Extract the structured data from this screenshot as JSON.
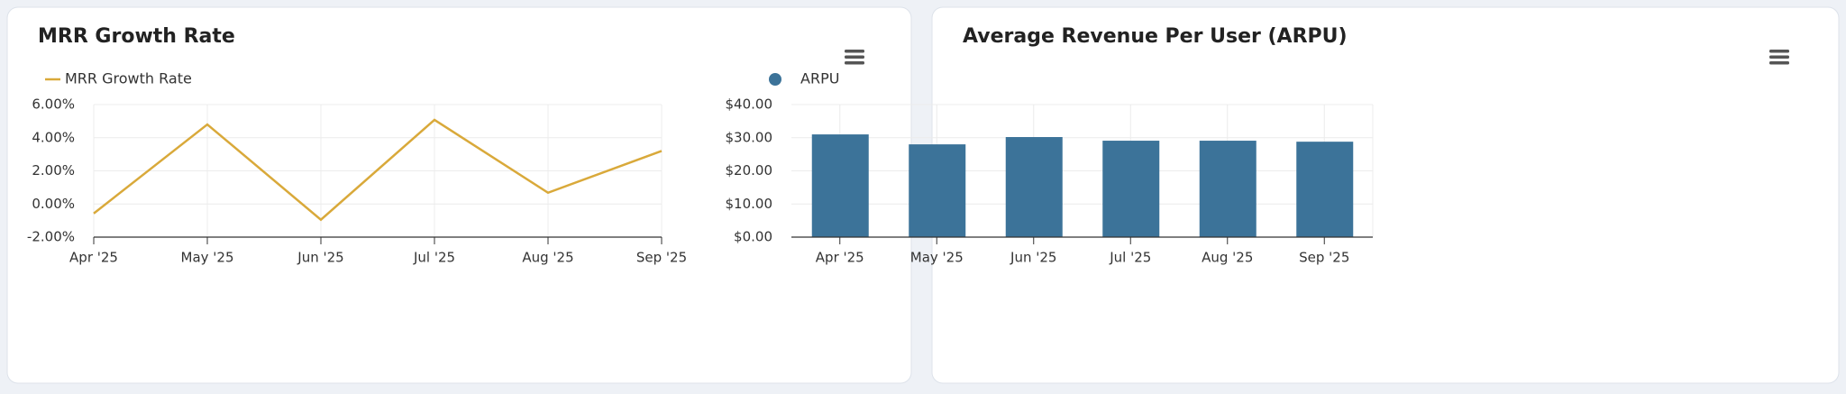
{
  "chart_data": [
    {
      "type": "line",
      "title": "MRR Growth Rate",
      "categories": [
        "Apr '25",
        "May '25",
        "Jun '25",
        "Jul '25",
        "Aug '25",
        "Sep '25"
      ],
      "series": [
        {
          "name": "MRR Growth Rate",
          "color": "#d9a93a",
          "values": [
            -0.57,
            4.8,
            -0.95,
            5.08,
            0.68,
            3.2
          ]
        }
      ],
      "ylim": [
        -2,
        6
      ],
      "yticks": [
        {
          "value": -2,
          "label": "-2.00%"
        },
        {
          "value": 0,
          "label": "0.00%"
        },
        {
          "value": 2,
          "label": "2.00%"
        },
        {
          "value": 4,
          "label": "4.00%"
        },
        {
          "value": 6,
          "label": "6.00%"
        }
      ],
      "grid": true
    },
    {
      "type": "bar",
      "title": "Average Revenue Per User (ARPU)",
      "categories": [
        "Apr '25",
        "May '25",
        "Jun '25",
        "Jul '25",
        "Aug '25",
        "Sep '25"
      ],
      "series": [
        {
          "name": "ARPU",
          "color": "#3c7399",
          "values": [
            31.0,
            28.0,
            30.2,
            29.1,
            29.1,
            28.8
          ]
        }
      ],
      "ylim": [
        0,
        40
      ],
      "yticks": [
        {
          "value": 0,
          "label": "$0.00"
        },
        {
          "value": 10,
          "label": "$10.00"
        },
        {
          "value": 20,
          "label": "$20.00"
        },
        {
          "value": 30,
          "label": "$30.00"
        },
        {
          "value": 40,
          "label": "$40.00"
        }
      ],
      "grid": true
    }
  ]
}
